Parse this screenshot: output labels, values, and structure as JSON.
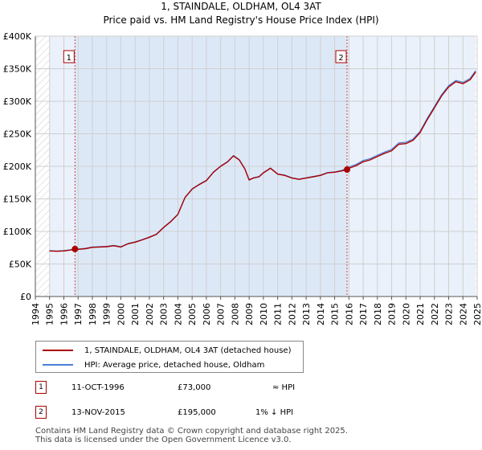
{
  "chart_data": {
    "type": "line",
    "title": "1, STAINDALE, OLDHAM, OL4 3AT",
    "subtitle": "Price paid vs. HM Land Registry's House Price Index (HPI)",
    "xlim": [
      1994,
      2025
    ],
    "ylim": [
      0,
      400000
    ],
    "x_ticks": [
      "1994",
      "1995",
      "1996",
      "1997",
      "1998",
      "1999",
      "2000",
      "2001",
      "2002",
      "2003",
      "2004",
      "2005",
      "2006",
      "2007",
      "2008",
      "2009",
      "2010",
      "2011",
      "2012",
      "2013",
      "2014",
      "2015",
      "2016",
      "2017",
      "2018",
      "2019",
      "2020",
      "2021",
      "2022",
      "2023",
      "2024",
      "2025"
    ],
    "y_ticks": [
      {
        "value": 0,
        "label": "£0"
      },
      {
        "value": 50000,
        "label": "£50K"
      },
      {
        "value": 100000,
        "label": "£100K"
      },
      {
        "value": 150000,
        "label": "£150K"
      },
      {
        "value": 200000,
        "label": "£200K"
      },
      {
        "value": 250000,
        "label": "£250K"
      },
      {
        "value": 300000,
        "label": "£300K"
      },
      {
        "value": 350000,
        "label": "£350K"
      },
      {
        "value": 400000,
        "label": "£400K"
      }
    ],
    "grid": true,
    "data_start": 1995.0,
    "data_end": 2024.9,
    "series": [
      {
        "name": "1, STAINDALE, OLDHAM, OL4 3AT (detached house)",
        "color": "#aa0000",
        "x": [
          1995.0,
          1995.5,
          1996.0,
          1996.5,
          1996.78,
          1997.0,
          1997.5,
          1998.0,
          1998.5,
          1999.0,
          1999.5,
          2000.0,
          2000.5,
          2001.0,
          2001.5,
          2002.0,
          2002.5,
          2003.0,
          2003.5,
          2004.0,
          2004.5,
          2005.0,
          2005.5,
          2006.0,
          2006.5,
          2007.0,
          2007.5,
          2007.9,
          2008.3,
          2008.7,
          2009.0,
          2009.3,
          2009.7,
          2010.0,
          2010.5,
          2011.0,
          2011.5,
          2012.0,
          2012.5,
          2013.0,
          2013.5,
          2014.0,
          2014.5,
          2015.0,
          2015.5,
          2015.87,
          2016.0,
          2016.5,
          2017.0,
          2017.5,
          2018.0,
          2018.5,
          2019.0,
          2019.5,
          2020.0,
          2020.5,
          2021.0,
          2021.5,
          2022.0,
          2022.5,
          2023.0,
          2023.5,
          2024.0,
          2024.5,
          2024.9
        ],
        "y": [
          70000,
          69500,
          70000,
          71500,
          73000,
          72500,
          73500,
          75500,
          76000,
          76500,
          78000,
          76000,
          81000,
          83500,
          87000,
          91000,
          95500,
          106000,
          115000,
          126000,
          152000,
          165000,
          172000,
          178000,
          191000,
          200000,
          207000,
          216000,
          210000,
          196000,
          179000,
          182000,
          184000,
          190000,
          197000,
          188000,
          186000,
          182000,
          180000,
          182000,
          184000,
          186000,
          190000,
          191000,
          193000,
          195000,
          197000,
          201000,
          207000,
          210000,
          215000,
          220000,
          224000,
          234000,
          235000,
          240000,
          252000,
          272000,
          290000,
          308000,
          322000,
          330000,
          327000,
          333000,
          345000
        ]
      },
      {
        "name": "HPI: Average price, detached house, Oldham",
        "color": "#4a7fd4",
        "x": [
          1995.0,
          1995.5,
          1996.0,
          1996.5,
          1996.78,
          1997.0,
          1997.5,
          1998.0,
          1998.5,
          1999.0,
          1999.5,
          2000.0,
          2000.5,
          2001.0,
          2001.5,
          2002.0,
          2002.5,
          2003.0,
          2003.5,
          2004.0,
          2004.5,
          2005.0,
          2005.5,
          2006.0,
          2006.5,
          2007.0,
          2007.5,
          2007.9,
          2008.3,
          2008.7,
          2009.0,
          2009.3,
          2009.7,
          2010.0,
          2010.5,
          2011.0,
          2011.5,
          2012.0,
          2012.5,
          2013.0,
          2013.5,
          2014.0,
          2014.5,
          2015.0,
          2015.5,
          2015.87,
          2016.0,
          2016.5,
          2017.0,
          2017.5,
          2018.0,
          2018.5,
          2019.0,
          2019.5,
          2020.0,
          2020.5,
          2021.0,
          2021.5,
          2022.0,
          2022.5,
          2023.0,
          2023.5,
          2024.0,
          2024.5,
          2024.9
        ],
        "y": [
          70500,
          70000,
          70500,
          72000,
          73500,
          73000,
          74000,
          76000,
          76500,
          77000,
          78500,
          76500,
          81500,
          84000,
          87500,
          91500,
          96000,
          106500,
          115500,
          126500,
          152500,
          165500,
          172500,
          178500,
          191500,
          200500,
          207500,
          216500,
          210500,
          196500,
          179500,
          182500,
          184500,
          190500,
          197500,
          188500,
          186500,
          182500,
          180500,
          182500,
          184500,
          186500,
          190500,
          191500,
          194000,
          197000,
          199000,
          203000,
          209000,
          212000,
          217000,
          222000,
          226000,
          236000,
          237000,
          242000,
          254000,
          274000,
          292000,
          310000,
          324000,
          332000,
          329000,
          335000,
          347000
        ]
      }
    ],
    "sales": [
      {
        "marker": "1",
        "x": 1996.78,
        "y": 73000,
        "date": "11-OCT-1996",
        "price": "£73,000",
        "hpi_note": "≈ HPI"
      },
      {
        "marker": "2",
        "x": 2015.87,
        "y": 195000,
        "date": "13-NOV-2015",
        "price": "£195,000",
        "hpi_note": "1% ↓ HPI"
      }
    ]
  },
  "legend": {
    "property_label": "1, STAINDALE, OLDHAM, OL4 3AT (detached house)",
    "hpi_label": "HPI: Average price, detached house, Oldham"
  },
  "footer": {
    "line1": "Contains HM Land Registry data © Crown copyright and database right 2025.",
    "line2": "This data is licensed under the Open Government Licence v3.0."
  }
}
